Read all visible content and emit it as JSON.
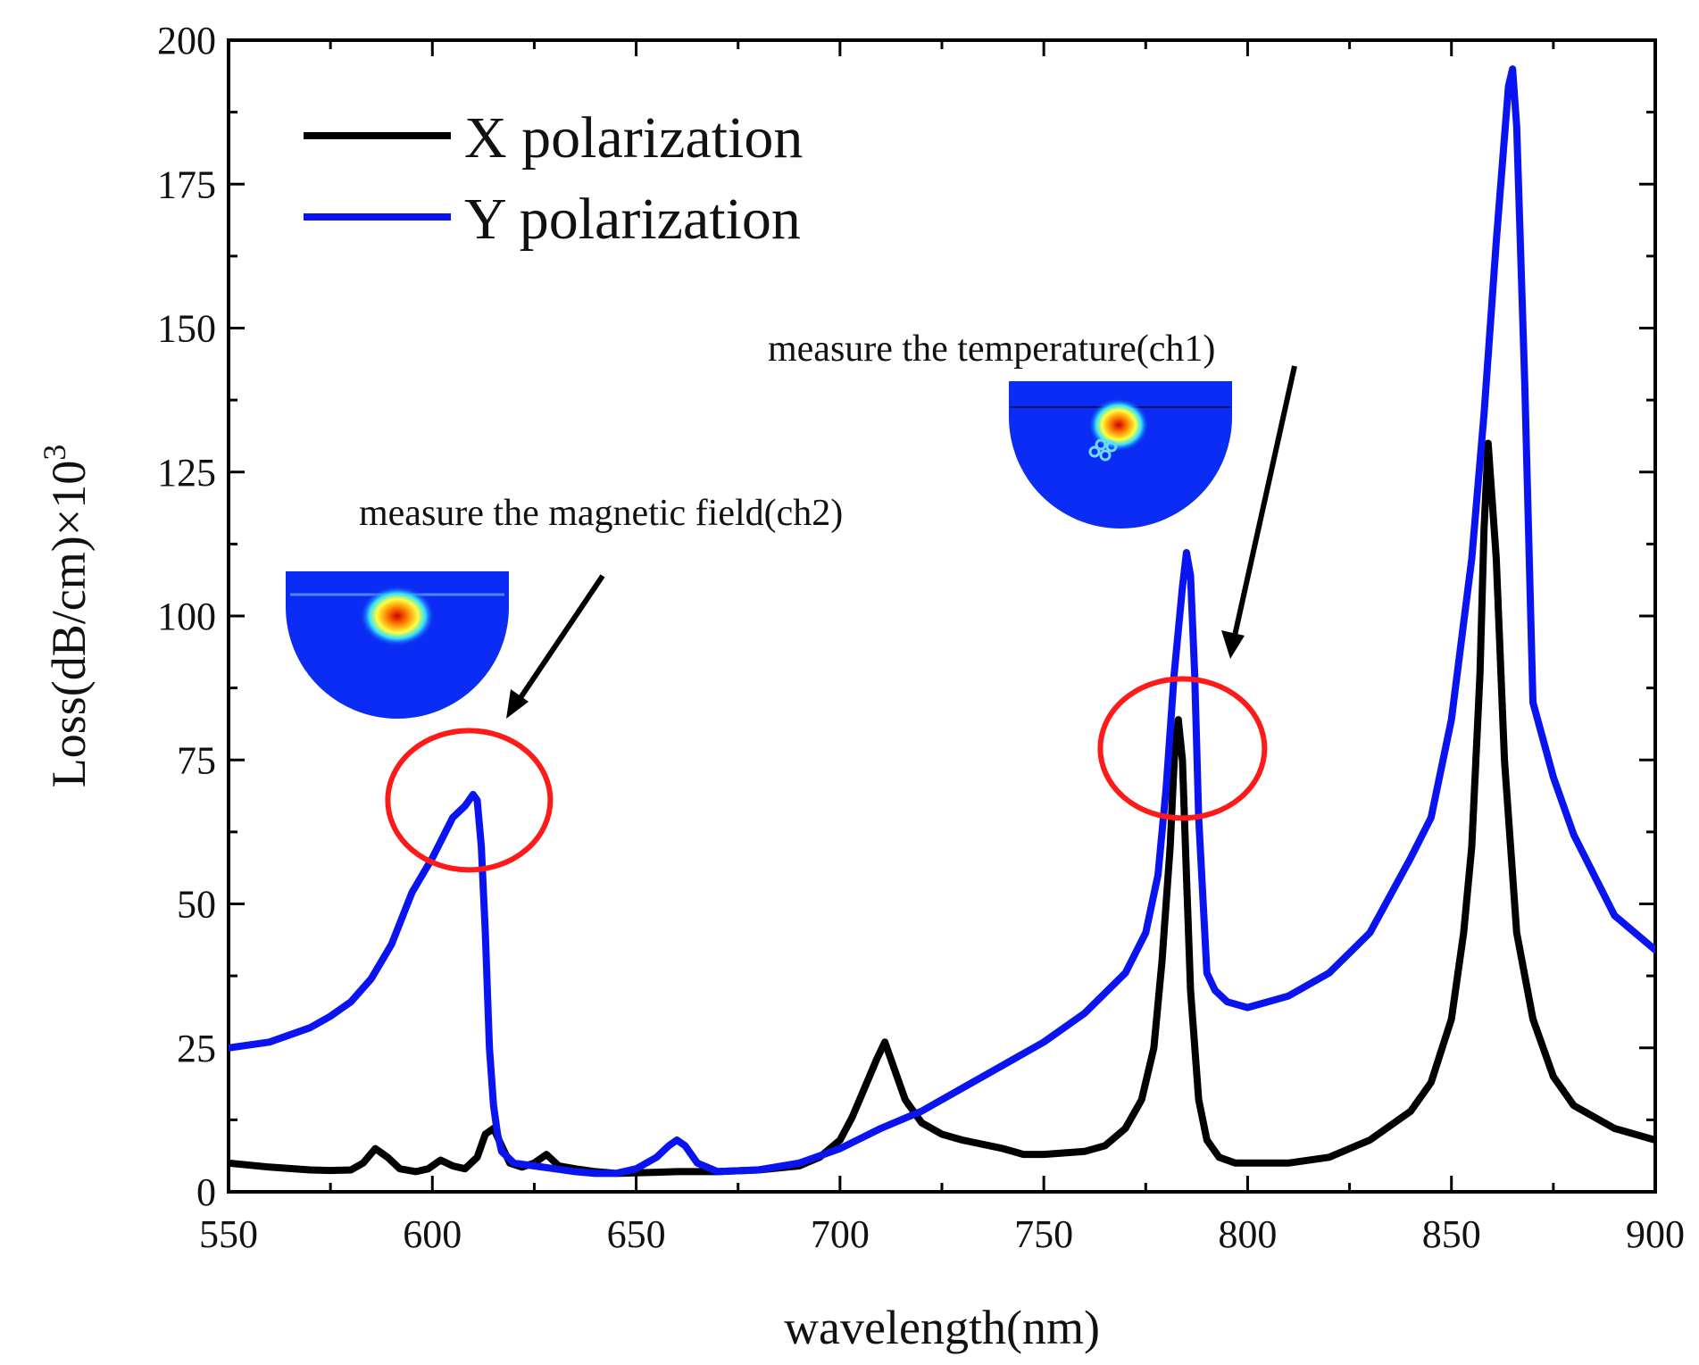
{
  "chart_data": {
    "type": "line",
    "xlabel": "wavelength(nm)",
    "ylabel": "Loss(dB/cm)×10",
    "ylabel_superscript": "3",
    "xlim": [
      550,
      900
    ],
    "ylim": [
      0,
      200
    ],
    "xticks": [
      550,
      600,
      650,
      700,
      750,
      800,
      850,
      900
    ],
    "yticks": [
      0,
      25,
      50,
      75,
      100,
      125,
      150,
      175,
      200
    ],
    "grid": false,
    "legend_position": "top-left",
    "series": [
      {
        "name": "X polarization",
        "color": "#000000",
        "x": [
          550,
          560,
          570,
          575,
          580,
          583,
          586,
          589,
          592,
          596,
          599,
          602,
          605,
          608,
          611,
          613,
          615,
          617,
          619,
          622,
          625,
          628,
          631,
          635,
          640,
          645,
          650,
          655,
          660,
          665,
          670,
          680,
          690,
          695,
          700,
          703,
          706,
          709,
          711,
          713,
          716,
          720,
          725,
          730,
          740,
          745,
          750,
          760,
          765,
          770,
          774,
          777,
          779,
          781,
          782,
          783,
          784,
          785,
          786,
          788,
          790,
          793,
          797,
          800,
          810,
          820,
          830,
          840,
          845,
          850,
          853,
          855,
          857,
          858,
          859,
          861,
          863,
          866,
          870,
          875,
          880,
          890,
          900
        ],
        "values": [
          5,
          4.3,
          3.8,
          3.7,
          3.8,
          5,
          7.5,
          6,
          4,
          3.5,
          4,
          5.5,
          4.5,
          4,
          6,
          10,
          11,
          8,
          5,
          4.3,
          5,
          6.5,
          4.5,
          4,
          3.5,
          3.2,
          3.3,
          3.4,
          3.5,
          3.5,
          3.5,
          3.8,
          4.5,
          6,
          9,
          13,
          18,
          23,
          26,
          22,
          16,
          12,
          10,
          9,
          7.5,
          6.5,
          6.5,
          7,
          8,
          11,
          16,
          25,
          40,
          60,
          75,
          82,
          75,
          55,
          35,
          16,
          9,
          6,
          5,
          5,
          5,
          6,
          9,
          14,
          19,
          30,
          45,
          60,
          90,
          115,
          130,
          110,
          75,
          45,
          30,
          20,
          15,
          11,
          9
        ]
      },
      {
        "name": "Y polarization",
        "color": "#0a14f0",
        "x": [
          550,
          560,
          570,
          575,
          580,
          585,
          590,
          595,
          600,
          605,
          608,
          610,
          611,
          612,
          613,
          614,
          615,
          616,
          617,
          620,
          625,
          630,
          635,
          640,
          645,
          650,
          655,
          658,
          660,
          662,
          665,
          670,
          680,
          690,
          700,
          710,
          720,
          730,
          740,
          750,
          760,
          770,
          775,
          778,
          780,
          782,
          784,
          785,
          786,
          787,
          788,
          790,
          792,
          795,
          800,
          810,
          820,
          830,
          840,
          845,
          850,
          855,
          858,
          861,
          864,
          865,
          866,
          868,
          870,
          875,
          880,
          885,
          890,
          895,
          900
        ],
        "values": [
          25,
          26,
          28.5,
          30.5,
          33,
          37,
          43,
          52,
          58,
          65,
          67,
          69,
          68,
          60,
          45,
          25,
          15,
          10,
          7,
          5,
          4.5,
          4,
          3.5,
          3.2,
          3.2,
          4,
          6,
          8,
          9,
          8,
          5,
          3.5,
          3.8,
          5,
          7.5,
          11,
          14,
          18,
          22,
          26,
          31,
          38,
          45,
          55,
          70,
          90,
          105,
          111,
          107,
          90,
          65,
          38,
          35,
          33,
          32,
          34,
          38,
          45,
          58,
          65,
          82,
          110,
          135,
          165,
          192,
          195,
          185,
          140,
          85,
          72,
          62,
          55,
          48,
          45,
          42
        ]
      }
    ],
    "annotations": [
      {
        "text": "measure the magnetic field(ch2)",
        "target_x": 609,
        "target_y": 68
      },
      {
        "text": "measure the temperature(ch1)",
        "target_x": 784,
        "target_y": 77
      }
    ]
  }
}
